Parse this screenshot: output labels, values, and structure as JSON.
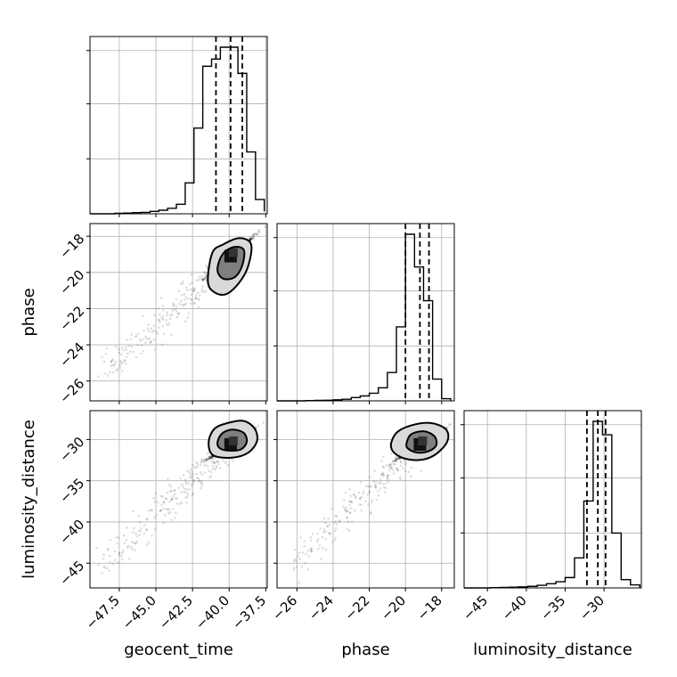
{
  "chart_data": {
    "type": "corner",
    "parameters": [
      "geocent_time",
      "phase",
      "luminosity_distance"
    ],
    "axis_labels": {
      "x": [
        "geocent_time",
        "phase",
        "luminosity_distance"
      ],
      "y": [
        "",
        "phase",
        "luminosity_distance"
      ]
    },
    "grid": true,
    "histograms": [
      {
        "parameter": "geocent_time",
        "range": [
          -49.5,
          -37.4
        ],
        "bin_edges": [
          -49.0,
          -48.4,
          -47.8,
          -47.2,
          -46.6,
          -46.0,
          -45.4,
          -44.8,
          -44.2,
          -43.6,
          -43.0,
          -42.4,
          -41.8,
          -41.2,
          -40.6,
          -40.0,
          -39.4,
          -38.8,
          -38.2,
          -37.6
        ],
        "counts": [
          0,
          0,
          0.2,
          0.3,
          0.5,
          0.6,
          1,
          1.5,
          2.3,
          4,
          13,
          36,
          62,
          65,
          70,
          70,
          59,
          26,
          6,
          1
        ],
        "quantiles": [
          -40.9,
          -39.9,
          -39.1
        ]
      },
      {
        "parameter": "phase",
        "range": [
          -27.1,
          -17.3
        ],
        "bin_edges": [
          -26.5,
          -26.0,
          -25.5,
          -25.0,
          -24.5,
          -24.0,
          -23.5,
          -23.0,
          -22.5,
          -22.0,
          -21.5,
          -21.0,
          -20.5,
          -20.0,
          -19.5,
          -19.0,
          -18.5,
          -18.0,
          -17.5
        ],
        "counts": [
          0,
          0,
          0.2,
          0.4,
          0.6,
          1,
          1.5,
          3,
          4.5,
          7,
          12,
          26,
          68,
          153,
          123,
          92,
          20,
          2
        ],
        "quantiles": [
          -20.0,
          -19.2,
          -18.7
        ]
      },
      {
        "parameter": "luminosity_distance",
        "range": [
          -48.0,
          -25.2
        ],
        "bin_edges": [
          -47.0,
          -45.8,
          -44.6,
          -43.4,
          -42.2,
          -41.0,
          -39.8,
          -38.6,
          -37.4,
          -36.2,
          -35.0,
          -33.8,
          -32.6,
          -31.4,
          -30.2,
          -29.0,
          -27.8,
          -26.6,
          -25.4
        ],
        "counts": [
          0,
          0,
          0.3,
          0.5,
          0.7,
          1,
          1.5,
          2.5,
          4,
          6,
          10,
          29,
          84,
          161,
          148,
          53,
          8,
          3
        ],
        "quantiles": [
          -32.2,
          -30.8,
          -29.8
        ]
      }
    ],
    "scatter_panels": [
      {
        "x": "geocent_time",
        "y": "phase",
        "xlim": [
          -49.5,
          -37.4
        ],
        "ylim": [
          -27.1,
          -17.3
        ],
        "center": [
          -39.9,
          -19.1
        ],
        "contours": [
          {
            "level": "outer",
            "points": [
              [
                -41.45,
                -20.5
              ],
              [
                -41.15,
                -18.92
              ],
              [
                -40.4,
                -18.45
              ],
              [
                -39.3,
                -18.1
              ],
              [
                -38.5,
                -18.45
              ],
              [
                -38.7,
                -19.65
              ],
              [
                -39.3,
                -20.55
              ],
              [
                -40.2,
                -21.2
              ],
              [
                -41.0,
                -21.1
              ]
            ]
          },
          {
            "level": "inner",
            "points": [
              [
                -40.8,
                -19.85
              ],
              [
                -40.45,
                -19.0
              ],
              [
                -39.7,
                -18.6
              ],
              [
                -39.0,
                -18.75
              ],
              [
                -39.1,
                -19.6
              ],
              [
                -39.6,
                -20.25
              ],
              [
                -40.4,
                -20.35
              ]
            ]
          }
        ]
      },
      {
        "x": "geocent_time",
        "y": "luminosity_distance",
        "xlim": [
          -49.5,
          -37.4
        ],
        "ylim": [
          -48.0,
          -26.5
        ],
        "center": [
          -39.9,
          -30.6
        ],
        "contours": [
          {
            "level": "outer",
            "points": [
              [
                -41.4,
                -30.3
              ],
              [
                -41.0,
                -28.7
              ],
              [
                -40.1,
                -28.0
              ],
              [
                -39.0,
                -27.75
              ],
              [
                -38.25,
                -28.7
              ],
              [
                -38.1,
                -30.2
              ],
              [
                -38.7,
                -31.6
              ],
              [
                -39.8,
                -32.2
              ],
              [
                -41.1,
                -31.9
              ]
            ]
          },
          {
            "level": "inner",
            "points": [
              [
                -40.8,
                -30.4
              ],
              [
                -40.5,
                -29.3
              ],
              [
                -39.8,
                -28.8
              ],
              [
                -39.0,
                -29.2
              ],
              [
                -38.8,
                -30.3
              ],
              [
                -39.2,
                -31.2
              ],
              [
                -40.0,
                -31.35
              ],
              [
                -40.6,
                -31.1
              ]
            ]
          }
        ]
      },
      {
        "x": "phase",
        "y": "luminosity_distance",
        "xlim": [
          -27.1,
          -17.3
        ],
        "ylim": [
          -48.0,
          -26.5
        ],
        "center": [
          -19.2,
          -30.6
        ],
        "contours": [
          {
            "level": "outer",
            "points": [
              [
                -20.8,
                -30.9
              ],
              [
                -20.5,
                -29.2
              ],
              [
                -19.7,
                -28.3
              ],
              [
                -18.6,
                -28.0
              ],
              [
                -17.75,
                -28.8
              ],
              [
                -17.7,
                -30.3
              ],
              [
                -18.4,
                -31.9
              ],
              [
                -19.3,
                -32.5
              ],
              [
                -20.3,
                -32.1
              ]
            ]
          },
          {
            "level": "inner",
            "points": [
              [
                -19.95,
                -30.6
              ],
              [
                -19.7,
                -29.4
              ],
              [
                -19.0,
                -29.0
              ],
              [
                -18.4,
                -29.6
              ],
              [
                -18.3,
                -30.7
              ],
              [
                -18.7,
                -31.4
              ],
              [
                -19.3,
                -31.6
              ],
              [
                -19.8,
                -31.2
              ]
            ]
          }
        ]
      }
    ],
    "ticks": {
      "geocent_time": [
        "−47.5",
        "−45.0",
        "−42.5",
        "−40.0",
        "−37.5"
      ],
      "geocent_time_values": [
        -47.5,
        -45.0,
        -42.5,
        -40.0,
        -37.5
      ],
      "phase": [
        "−26",
        "−24",
        "−22",
        "−20",
        "−18"
      ],
      "phase_values": [
        -26,
        -24,
        -22,
        -20,
        -18
      ],
      "luminosity_distance": [
        "−45",
        "−40",
        "−35",
        "−30"
      ],
      "luminosity_distance_values": [
        -45,
        -40,
        -35,
        -30
      ]
    },
    "colors": {
      "ink": "#000000",
      "grid": "#b0b0b0",
      "density_dark": "#111111",
      "density_mid": "#7f7f7f",
      "density_light": "#d9d9d9"
    }
  }
}
